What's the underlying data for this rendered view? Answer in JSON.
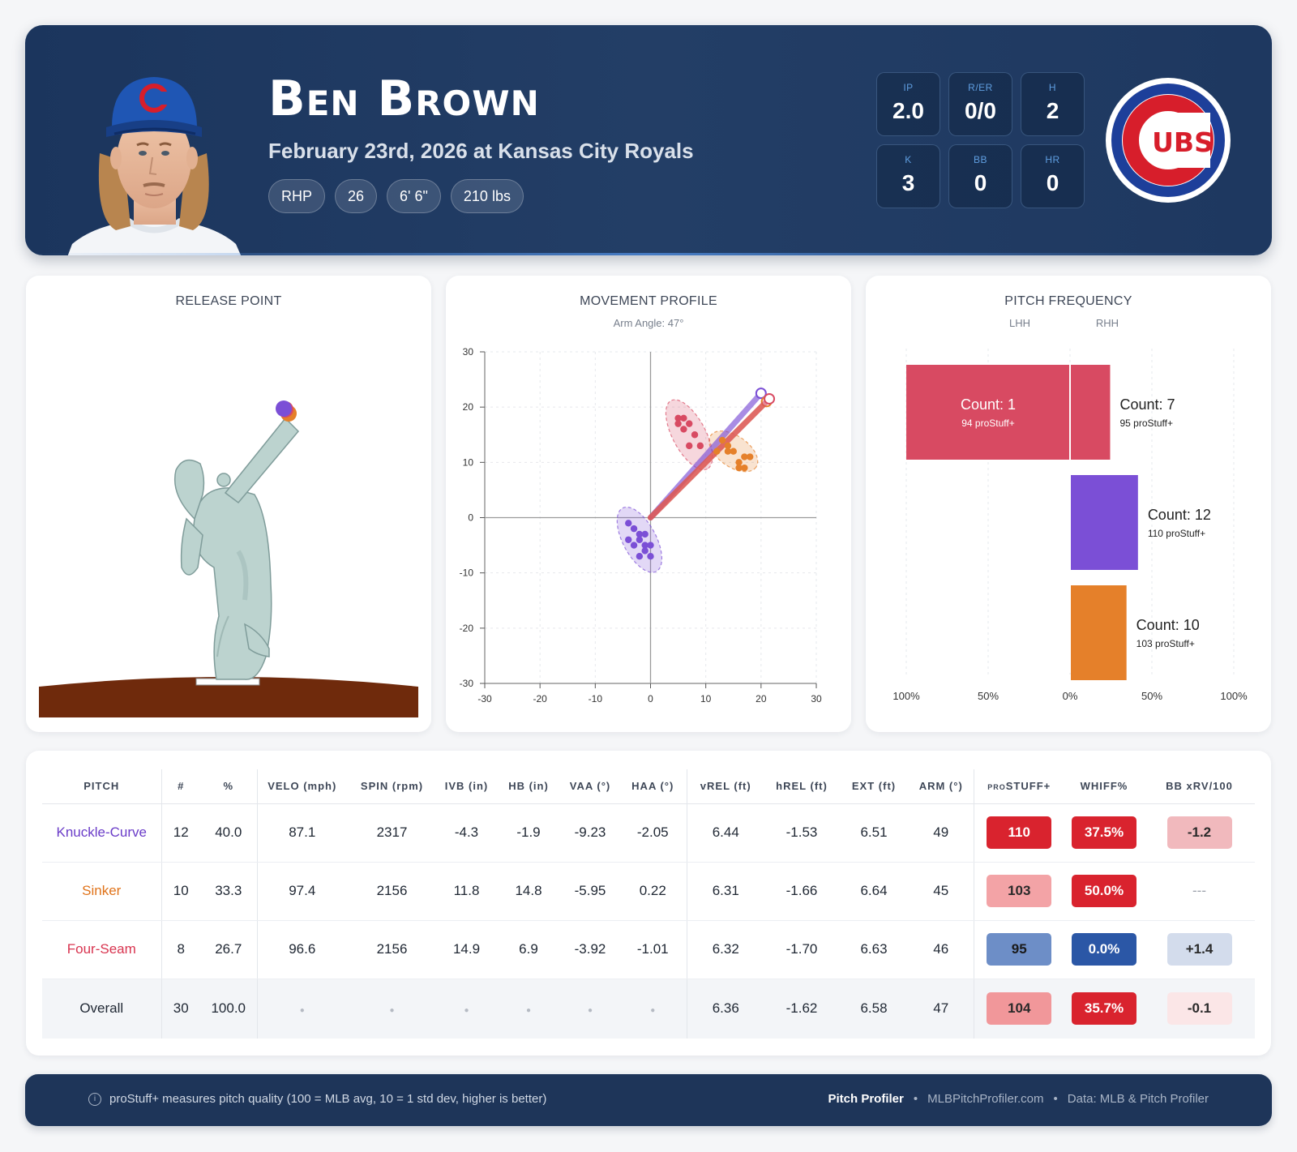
{
  "player": {
    "name": "Ben Brown",
    "game_line": "February 23rd, 2026 at Kansas City Royals",
    "chips": [
      "RHP",
      "26",
      "6' 6\"",
      "210 lbs"
    ]
  },
  "team_logo_text": "UBS",
  "line_stats": [
    {
      "label": "IP",
      "value": "2.0"
    },
    {
      "label": "R/ER",
      "value": "0/0"
    },
    {
      "label": "H",
      "value": "2"
    },
    {
      "label": "K",
      "value": "3"
    },
    {
      "label": "BB",
      "value": "0"
    },
    {
      "label": "HR",
      "value": "0"
    }
  ],
  "colors": {
    "knuckle_curve": "#7b4fd6",
    "sinker": "#e5802a",
    "four_seam": "#d84a62",
    "navy": "#1b355d"
  },
  "release_point": {
    "title": "RELEASE POINT"
  },
  "chart_data": [
    {
      "type": "scatter",
      "title": "MOVEMENT PROFILE",
      "subtitle": "Arm Angle: 47°",
      "xlim": [
        -30,
        30
      ],
      "ylim": [
        -30,
        30
      ],
      "xticks": [
        -30,
        -20,
        -10,
        0,
        10,
        20,
        30
      ],
      "yticks": [
        30,
        20,
        10,
        0,
        -10,
        -20,
        -30
      ],
      "grid": true,
      "series": [
        {
          "key": "knuckle_curve",
          "avg_hb": -2,
          "avg_ivb": -4,
          "ellipse_rx": 6.5,
          "ellipse_ry": 3.0,
          "ellipse_angle": 62,
          "points": [
            [
              -4,
              -1
            ],
            [
              -3,
              -2
            ],
            [
              -2,
              -3
            ],
            [
              -1,
              -3
            ],
            [
              -4,
              -4
            ],
            [
              -2,
              -4
            ],
            [
              -1,
              -5
            ],
            [
              0,
              -5
            ],
            [
              -3,
              -5
            ],
            [
              -1,
              -6
            ],
            [
              0,
              -7
            ],
            [
              -2,
              -7
            ]
          ]
        },
        {
          "key": "sinker",
          "avg_hb": 15,
          "avg_ivb": 12,
          "ellipse_rx": 5.0,
          "ellipse_ry": 2.8,
          "ellipse_angle": 35,
          "points": [
            [
              13,
              14
            ],
            [
              14,
              13
            ],
            [
              14,
              12
            ],
            [
              15,
              12
            ],
            [
              12,
              12
            ],
            [
              17,
              11
            ],
            [
              18,
              11
            ],
            [
              16,
              10
            ],
            [
              16,
              9
            ],
            [
              17,
              9
            ]
          ]
        },
        {
          "key": "four_seam",
          "avg_hb": 7,
          "avg_ivb": 15,
          "ellipse_rx": 7.0,
          "ellipse_ry": 3.0,
          "ellipse_angle": 62,
          "points": [
            [
              5,
              18
            ],
            [
              6,
              18
            ],
            [
              5,
              17
            ],
            [
              7,
              17
            ],
            [
              6,
              16
            ],
            [
              8,
              15
            ],
            [
              7,
              13
            ],
            [
              9,
              13
            ]
          ]
        }
      ],
      "arm_lines": [
        {
          "key": "knuckle_curve",
          "end": [
            20,
            22.5
          ]
        },
        {
          "key": "sinker",
          "end": [
            21,
            21
          ]
        },
        {
          "key": "four_seam",
          "end": [
            21.5,
            21.5
          ]
        }
      ]
    },
    {
      "type": "bar",
      "title": "PITCH FREQUENCY",
      "side_labels": [
        "LHH",
        "RHH"
      ],
      "xticks": [
        "100%",
        "50%",
        "0%",
        "50%",
        "100%"
      ],
      "bars": [
        {
          "key": "four_seam",
          "lhh_pct": 100,
          "rhh_pct": 24,
          "lhh_label": "Count: 1",
          "lhh_sub": "94 proStuff+",
          "rhh_label": "Count: 7",
          "rhh_sub": "95 proStuff+"
        },
        {
          "key": "knuckle_curve",
          "lhh_pct": 0,
          "rhh_pct": 41,
          "lhh_label": "",
          "lhh_sub": "",
          "rhh_label": "Count: 12",
          "rhh_sub": "110 proStuff+"
        },
        {
          "key": "sinker",
          "lhh_pct": 0,
          "rhh_pct": 34,
          "lhh_label": "",
          "lhh_sub": "",
          "rhh_label": "Count: 10",
          "rhh_sub": "103 proStuff+"
        }
      ]
    }
  ],
  "table": {
    "headers": [
      "PITCH",
      "#",
      "%",
      "VELO (mph)",
      "SPIN (rpm)",
      "IVB (in)",
      "HB (in)",
      "VAA (°)",
      "HAA (°)",
      "vREL (ft)",
      "hREL (ft)",
      "EXT (ft)",
      "ARM (°)",
      "proSTUFF+",
      "WHIFF%",
      "BB xRV/100"
    ],
    "rows": [
      {
        "pitch": "Knuckle-Curve",
        "color": "#6a3cc8",
        "count": "12",
        "pct": "40.0",
        "velo": "87.1",
        "spin": "2317",
        "ivb": "-4.3",
        "hb": "-1.9",
        "vaa": "-9.23",
        "haa": "-2.05",
        "vrel": "6.44",
        "hrel": "-1.53",
        "ext": "6.51",
        "arm": "49",
        "stuff": "110",
        "stuff_bg": "#d9232e",
        "stuff_fg": "#ffffff",
        "whiff": "37.5%",
        "whiff_bg": "#d9232e",
        "whiff_fg": "#ffffff",
        "xrv": "-1.2",
        "xrv_bg": "#f1b9bd",
        "xrv_fg": "#2a2a2a"
      },
      {
        "pitch": "Sinker",
        "color": "#e0731a",
        "count": "10",
        "pct": "33.3",
        "velo": "97.4",
        "spin": "2156",
        "ivb": "11.8",
        "hb": "14.8",
        "vaa": "-5.95",
        "haa": "0.22",
        "vrel": "6.31",
        "hrel": "-1.66",
        "ext": "6.64",
        "arm": "45",
        "stuff": "103",
        "stuff_bg": "#f3a3a6",
        "stuff_fg": "#2a2a2a",
        "whiff": "50.0%",
        "whiff_bg": "#d9232e",
        "whiff_fg": "#ffffff",
        "xrv": "---",
        "xrv_bg": "transparent",
        "xrv_fg": "#9aa0aa"
      },
      {
        "pitch": "Four-Seam",
        "color": "#d8344f",
        "count": "8",
        "pct": "26.7",
        "velo": "96.6",
        "spin": "2156",
        "ivb": "14.9",
        "hb": "6.9",
        "vaa": "-3.92",
        "haa": "-1.01",
        "vrel": "6.32",
        "hrel": "-1.70",
        "ext": "6.63",
        "arm": "46",
        "stuff": "95",
        "stuff_bg": "#6d8ec7",
        "stuff_fg": "#1a1a1a",
        "whiff": "0.0%",
        "whiff_bg": "#2b57a6",
        "whiff_fg": "#ffffff",
        "xrv": "+1.4",
        "xrv_bg": "#d3dcec",
        "xrv_fg": "#2a2a2a"
      }
    ],
    "overall": {
      "pitch": "Overall",
      "count": "30",
      "pct": "100.0",
      "vrel": "6.36",
      "hrel": "-1.62",
      "ext": "6.58",
      "arm": "47",
      "stuff": "104",
      "stuff_bg": "#f1979a",
      "stuff_fg": "#2a2a2a",
      "whiff": "35.7%",
      "whiff_bg": "#d9232e",
      "whiff_fg": "#ffffff",
      "xrv": "-0.1",
      "xrv_bg": "#fbe6e7",
      "xrv_fg": "#2a2a2a"
    }
  },
  "footer": {
    "note": "proStuff+ measures pitch quality (100 = MLB avg, 10 = 1 std dev, higher is better)",
    "brand": "Pitch Profiler",
    "site": "MLBPitchProfiler.com",
    "source": "Data: MLB & Pitch Profiler",
    "sep": "•"
  }
}
